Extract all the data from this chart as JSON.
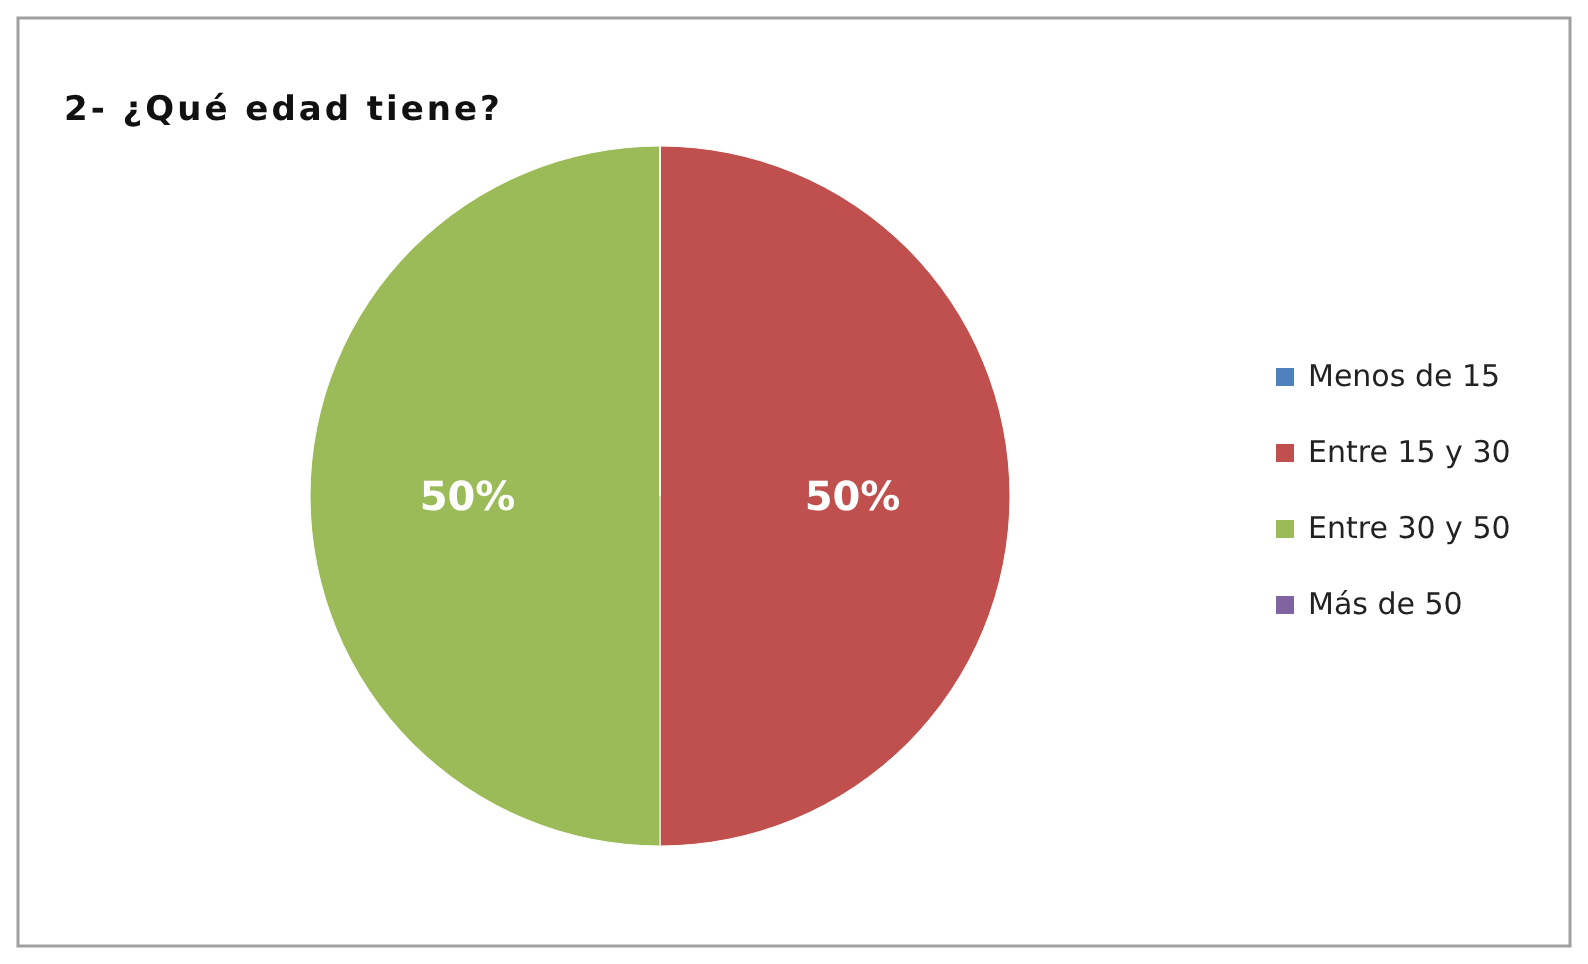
{
  "chart_data": {
    "type": "pie",
    "title": "2- ¿Qué edad tiene?",
    "categories": [
      "Menos de 15",
      "Entre 15 y 30",
      "Entre 30 y 50",
      "Más de 50"
    ],
    "values": [
      0,
      50,
      50,
      0
    ],
    "colors": [
      "#4f81bd",
      "#c0504d",
      "#9bbb59",
      "#8064a2"
    ],
    "value_labels": [
      null,
      "50%",
      "50%",
      null
    ],
    "legend": "right"
  }
}
